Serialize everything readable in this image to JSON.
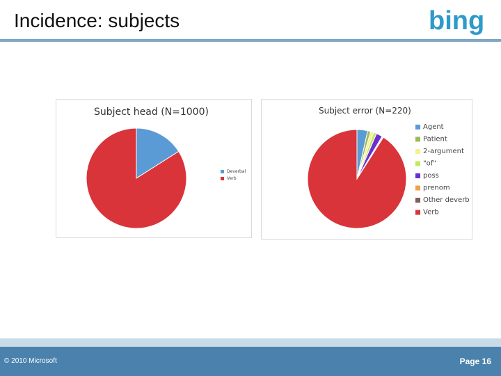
{
  "slide": {
    "title": "Incidence: subjects",
    "logo_text": "bing",
    "copyright": "© 2010 Microsoft",
    "page": "Page 16"
  },
  "colors": {
    "rule": "#7fa6c4",
    "footer": "#4a82ad",
    "footer_light": "#c8dbe9",
    "logo": "#2e9ac9"
  },
  "chart_data": [
    {
      "type": "pie",
      "title": "Subject head (N=1000)",
      "legend_placement": "right",
      "series": [
        {
          "name": "Deverbal",
          "value": 16,
          "color": "#5b9bd5"
        },
        {
          "name": "Verb",
          "value": 84,
          "color": "#d9343a"
        }
      ]
    },
    {
      "type": "pie",
      "title": "Subject error (N=220)",
      "legend_placement": "right",
      "series": [
        {
          "name": "Agent",
          "value": 3.5,
          "color": "#5b9bd5"
        },
        {
          "name": "Patient",
          "value": 1.0,
          "color": "#9bbb59"
        },
        {
          "name": "2-argument",
          "value": 1.0,
          "color": "#f2f28c"
        },
        {
          "name": "\"of\"",
          "value": 1.0,
          "color": "#c6e85e"
        },
        {
          "name": "poss",
          "value": 2.0,
          "color": "#6a2fd3"
        },
        {
          "name": "prenom",
          "value": 0.3,
          "color": "#f3a248"
        },
        {
          "name": "Other deverb",
          "value": 0.2,
          "color": "#7f5f5f"
        },
        {
          "name": "Verb",
          "value": 91.0,
          "color": "#d9343a"
        }
      ]
    }
  ]
}
